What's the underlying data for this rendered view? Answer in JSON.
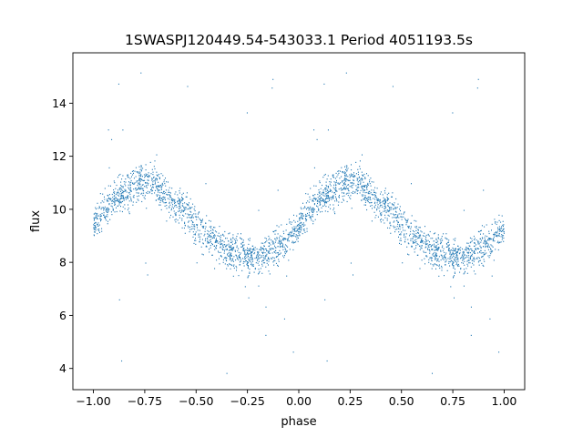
{
  "chart_data": {
    "type": "scatter",
    "title": "1SWASPJ120449.54-543033.1 Period 4051193.5s",
    "xlabel": "phase",
    "ylabel": "flux",
    "xlim": [
      -1.1,
      1.1
    ],
    "ylim": [
      3.2,
      15.9
    ],
    "xticks": [
      -1.0,
      -0.75,
      -0.5,
      -0.25,
      0.0,
      0.25,
      0.5,
      0.75,
      1.0
    ],
    "xtick_labels": [
      "−1.00",
      "−0.75",
      "−0.50",
      "−0.25",
      "0.00",
      "0.25",
      "0.50",
      "0.75",
      "1.00"
    ],
    "yticks": [
      4,
      6,
      8,
      10,
      12,
      14
    ],
    "ytick_labels": [
      "4",
      "6",
      "8",
      "10",
      "12",
      "14"
    ],
    "grid": false,
    "legend": "none",
    "series": [
      {
        "color": "#1f77b4",
        "marker": "point",
        "points_per_period": 1500,
        "period_repeated": [
          -1.0,
          0.0,
          1.0
        ],
        "trend": {
          "phase": [
            0.0,
            0.05,
            0.1,
            0.15,
            0.2,
            0.25,
            0.3,
            0.35,
            0.4,
            0.45,
            0.5,
            0.55,
            0.6,
            0.65,
            0.7,
            0.75,
            0.8,
            0.85,
            0.9,
            0.95,
            1.0
          ],
          "flux": [
            9.3,
            9.9,
            10.3,
            10.6,
            10.9,
            11.1,
            11.0,
            10.6,
            10.2,
            9.9,
            9.4,
            9.0,
            8.7,
            8.5,
            8.3,
            8.2,
            8.2,
            8.3,
            8.6,
            8.9,
            9.3
          ]
        },
        "scatter_std": 0.85,
        "outlier_range": [
          3.8,
          15.2
        ]
      }
    ]
  }
}
